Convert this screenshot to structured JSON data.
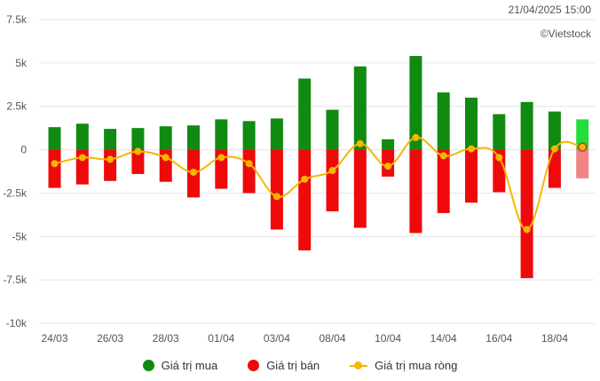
{
  "timestamp": "21/04/2025 15:00",
  "watermark": "©Vietstock",
  "colors": {
    "buy": "#118a11",
    "sell": "#ee0a0a",
    "net": "#f5b700",
    "buy_latest": "#22dd3a",
    "sell_latest": "#f28484",
    "grid": "#e6e6e6"
  },
  "chart_data": {
    "type": "bar",
    "title": "",
    "xlabel": "",
    "ylabel": "",
    "ylim": [
      -10000,
      7500
    ],
    "yticks": [
      7500,
      5000,
      2500,
      0,
      -2500,
      -5000,
      -7500,
      -10000
    ],
    "ytick_labels": [
      "7.5k",
      "5k",
      "2.5k",
      "0",
      "-2.5k",
      "-5k",
      "-7.5k",
      "-10k"
    ],
    "grid": true,
    "legend_position": "bottom",
    "categories": [
      "24/03",
      "25/03",
      "26/03",
      "27/03",
      "28/03",
      "31/03",
      "01/04",
      "02/04",
      "03/04",
      "04/04",
      "08/04",
      "09/04",
      "10/04",
      "11/04",
      "14/04",
      "15/04",
      "16/04",
      "17/04",
      "18/04",
      "21/04"
    ],
    "xtick_labels": [
      "24/03",
      "26/03",
      "28/03",
      "01/04",
      "03/04",
      "08/04",
      "10/04",
      "14/04",
      "16/04",
      "18/04"
    ],
    "series": [
      {
        "name": "Giá trị mua",
        "kind": "bar",
        "values": [
          1300,
          1500,
          1200,
          1250,
          1350,
          1400,
          1750,
          1650,
          1800,
          4100,
          2300,
          4800,
          600,
          5400,
          3300,
          3000,
          2050,
          2750,
          2200,
          1750
        ]
      },
      {
        "name": "Giá trị bán",
        "kind": "bar",
        "values": [
          -2200,
          -2000,
          -1800,
          -1400,
          -1850,
          -2750,
          -2250,
          -2500,
          -4600,
          -5800,
          -3550,
          -4500,
          -1550,
          -4800,
          -3650,
          -3050,
          -2450,
          -7400,
          -2200,
          -1650
        ]
      },
      {
        "name": "Giá trị mua ròng",
        "kind": "line",
        "values": [
          -800,
          -450,
          -550,
          -100,
          -450,
          -1300,
          -450,
          -800,
          -2700,
          -1700,
          -1200,
          350,
          -950,
          700,
          -350,
          50,
          -450,
          -4600,
          50,
          150
        ]
      }
    ],
    "last_bar_highlighted": true
  },
  "legend": [
    {
      "label": "Giá trị mua",
      "marker": "dot",
      "color": "#118a11"
    },
    {
      "label": "Giá trị bán",
      "marker": "dot",
      "color": "#ee0a0a"
    },
    {
      "label": "Giá trị mua ròng",
      "marker": "line",
      "color": "#f5b700"
    }
  ]
}
